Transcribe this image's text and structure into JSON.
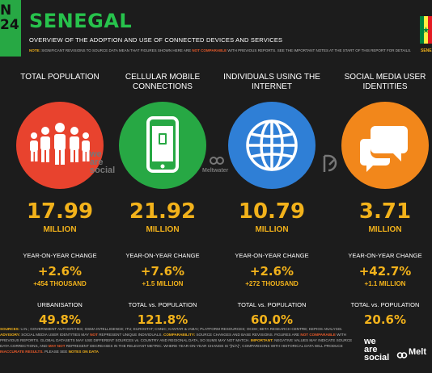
{
  "header": {
    "corner_text": "N\n24",
    "title": "SENEGAL",
    "subtitle": "OVERVIEW OF THE ADOPTION AND USE OF CONNECTED DEVICES AND SERVICES",
    "note_label": "NOTE:",
    "note_text_1": "SIGNIFICANT REVISIONS TO SOURCE DATA MEAN THAT FIGURES SHOWN HERE ARE",
    "note_highlight": "NOT COMPARABLE",
    "note_text_2": "WITH PREVIOUS REPORTS. SEE THE IMPORTANT NOTES AT THE START OF THIS REPORT FOR DETAILS.",
    "flag_label": "SENE"
  },
  "colors": {
    "accent": "#f2b21b",
    "brand_green": "#27c24c",
    "population_circle": "#e8432e",
    "mobile_circle": "#27a844",
    "internet_circle": "#2f7fd6",
    "social_circle": "#f2871b"
  },
  "columns": [
    {
      "heading": "TOTAL POPULATION",
      "icon": "people-icon",
      "value": "17.99",
      "unit": "MILLION",
      "yoy_label": "YEAR-ON-YEAR CHANGE",
      "yoy_pct": "+2.6%",
      "yoy_abs": "+454 THOUSAND",
      "extra_label": "URBANISATION",
      "extra_value": "49.8%"
    },
    {
      "heading": "CELLULAR MOBILE CONNECTIONS",
      "icon": "mobile-phone-icon",
      "value": "21.92",
      "unit": "MILLION",
      "yoy_label": "YEAR-ON-YEAR CHANGE",
      "yoy_pct": "+7.6%",
      "yoy_abs": "+1.5 MILLION",
      "extra_label": "TOTAL vs. POPULATION",
      "extra_value": "121.8%"
    },
    {
      "heading": "INDIVIDUALS USING THE INTERNET",
      "icon": "globe-icon",
      "value": "10.79",
      "unit": "MILLION",
      "yoy_label": "YEAR-ON-YEAR CHANGE",
      "yoy_pct": "+2.6%",
      "yoy_abs": "+272 THOUSAND",
      "extra_label": "TOTAL vs. POPULATION",
      "extra_value": "60.0%"
    },
    {
      "heading": "SOCIAL MEDIA USER IDENTITIES",
      "icon": "chat-bubbles-icon",
      "value": "3.71",
      "unit": "MILLION",
      "yoy_label": "YEAR-ON-YEAR CHANGE",
      "yoy_pct": "+42.7%",
      "yoy_abs": "+1.1 MILLION",
      "extra_label": "TOTAL vs. POPULATION",
      "extra_value": "20.6%"
    }
  ],
  "brands": {
    "we_are_social": "we\nare\nsocial",
    "meltwater": "Meltwater"
  },
  "footer": {
    "sources_label": "SOURCES:",
    "sources_text": "U.N.; GOVERNMENT AUTHORITIES; GSMA INTELLIGENCE; ITU; EUROSTAT; CNNIC; KANTAR & IAMAI; PLATFORM RESOURCES; OCDH; BETA RESEARCH CENTRE; KEPIOS ANALYSIS.",
    "advisory_label": "ADVISORY:",
    "advisory_text": "SOCIAL MEDIA USER IDENTITIES MAY",
    "advisory_not": "NOT",
    "advisory_text_2": "REPRESENT UNIQUE INDIVIDUALS.",
    "comparability_label": "COMPARABILITY:",
    "comparability_text": "SOURCE CHANGES AND BASE REVISIONS. FIGURES ARE",
    "comparability_not": "NOT COMPARABLE",
    "comparability_text_2": "WITH PREVIOUS REPORTS. GLOBAL DATASETS MAY USE DIFFERENT SOURCES vs. COUNTRY AND REGIONAL DATA, SO SUMS MAY NOT MATCH.",
    "important_label": "IMPORTANT:",
    "important_text": "NEGATIVE VALUES MAY INDICATE SOURCE DATA CORRECTIONS, AND",
    "important_not": "MAY NOT",
    "important_text_2": "REPRESENT DECREASES IN THE RELEVANT METRIC. WHERE YEAR-ON-YEAR CHANGE IS \"[N/A]\", COMPARISONS WITH HISTORICAL DATA WILL PRODUCE",
    "inaccurate": "INACCURATE RESULTS.",
    "please": "PLEASE SEE",
    "notes_link": "NOTES ON DATA",
    "logo_wrs": "we\nare\nsocial",
    "logo_melt": "Melt"
  }
}
